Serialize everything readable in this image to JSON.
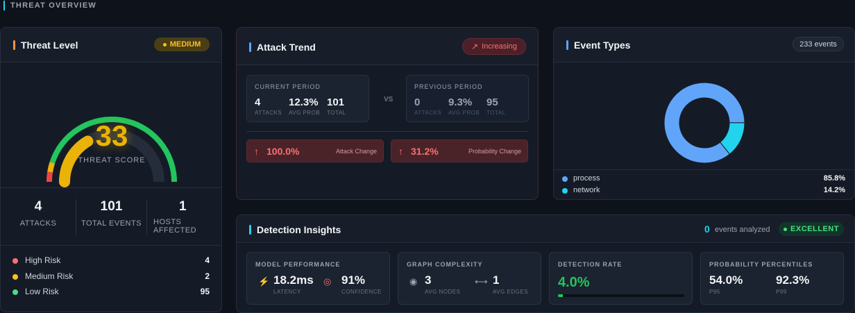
{
  "page_header": "THREAT OVERVIEW",
  "threat_level": {
    "title": "Threat Level",
    "badge": "MEDIUM",
    "score": 33,
    "range": [
      0,
      100
    ],
    "score_label": "THREAT SCORE",
    "stats": [
      {
        "value": "4",
        "label": "ATTACKS"
      },
      {
        "value": "101",
        "label": "TOTAL EVENTS"
      },
      {
        "value": "1",
        "label": "HOSTS AFFECTED"
      }
    ],
    "risks": [
      {
        "label": "High Risk",
        "value": "4",
        "color": "#f87171"
      },
      {
        "label": "Medium Risk",
        "value": "2",
        "color": "#fbbf24"
      },
      {
        "label": "Low Risk",
        "value": "95",
        "color": "#4ade80"
      }
    ]
  },
  "attack_trend": {
    "title": "Attack Trend",
    "badge": "Increasing",
    "current": {
      "label": "CURRENT PERIOD",
      "metrics": [
        {
          "value": "4",
          "label": "ATTACKS"
        },
        {
          "value": "12.3%",
          "label": "AVG PROB"
        },
        {
          "value": "101",
          "label": "TOTAL"
        }
      ]
    },
    "vs": "VS",
    "previous": {
      "label": "PREVIOUS PERIOD",
      "metrics": [
        {
          "value": "0",
          "label": "ATTACKS"
        },
        {
          "value": "9.3%",
          "label": "AVG PROB"
        },
        {
          "value": "95",
          "label": "TOTAL"
        }
      ]
    },
    "changes": [
      {
        "value": "100.0%",
        "label": "Attack Change"
      },
      {
        "value": "31.2%",
        "label": "Probability Change"
      }
    ]
  },
  "chart_data": {
    "type": "pie",
    "title": "Event Types",
    "badge": "233 events",
    "categories": [
      "process",
      "network"
    ],
    "values": [
      85.8,
      14.2
    ],
    "value_labels": [
      "85.8%",
      "14.2%"
    ],
    "colors": [
      "#60a5fa",
      "#22d3ee"
    ]
  },
  "detection_insights": {
    "title": "Detection Insights",
    "events_count": "0",
    "events_label": "events analyzed",
    "badge": "EXCELLENT",
    "cards": [
      {
        "title": "MODEL PERFORMANCE",
        "metrics": [
          {
            "value": "18.2ms",
            "label": "LATENCY"
          },
          {
            "value": "91%",
            "label": "CONFIDENCE"
          }
        ]
      },
      {
        "title": "GRAPH COMPLEXITY",
        "metrics": [
          {
            "value": "3",
            "label": "AVG NODES"
          },
          {
            "value": "1",
            "label": "AVG EDGES"
          }
        ]
      },
      {
        "title": "DETECTION RATE",
        "rate": {
          "value": 4.0,
          "label": "4.0%"
        }
      },
      {
        "title": "PROBABILITY PERCENTILES",
        "metrics": [
          {
            "value": "54.0%",
            "label": "P95"
          },
          {
            "value": "92.3%",
            "label": "P99"
          }
        ]
      }
    ]
  }
}
